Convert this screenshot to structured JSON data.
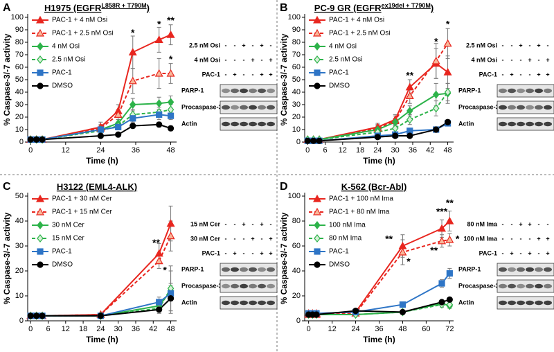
{
  "chart_data": [
    {
      "type": "line",
      "panel": "A",
      "title": "H1975 (EGFR",
      "title_superscript": "L858R + T790M",
      "title_suffix": ")",
      "xlabel": "Time (h)",
      "ylabel": "% Caspase-3/-7 activity",
      "x": [
        0,
        2,
        4,
        24,
        30,
        35,
        44,
        48
      ],
      "xlim": [
        -1,
        50
      ],
      "xticks": [
        0,
        12,
        24,
        36,
        48
      ],
      "ylim": [
        0,
        100
      ],
      "yticks": [
        0,
        10,
        20,
        30,
        40,
        50,
        60,
        70,
        80,
        90,
        100
      ],
      "series": [
        {
          "name": "PAC-1 + 4 nM Osi",
          "color": "#e8261f",
          "marker": "triangle",
          "marker_fill": "#e8261f",
          "dashed": false,
          "values": [
            2,
            2,
            2,
            12,
            25,
            72,
            82,
            86
          ],
          "errors": [
            1,
            1,
            1,
            4,
            5,
            13,
            10,
            8
          ]
        },
        {
          "name": "PAC-1 + 2.5 nM Osi",
          "color": "#e8261f",
          "marker": "triangle",
          "marker_fill": "#f8b79a",
          "dashed": true,
          "values": [
            2,
            2,
            2,
            11,
            22,
            49,
            55,
            55
          ],
          "errors": [
            1,
            1,
            1,
            3,
            4,
            10,
            12,
            8
          ]
        },
        {
          "name": "4 nM Osi",
          "color": "#2db34a",
          "marker": "diamond",
          "marker_fill": "#2db34a",
          "dashed": false,
          "values": [
            2,
            2,
            2,
            10,
            15,
            30,
            31,
            32
          ],
          "errors": [
            1,
            1,
            1,
            3,
            3,
            5,
            5,
            5
          ]
        },
        {
          "name": "2.5 nM Osi",
          "color": "#2db34a",
          "marker": "diamond",
          "marker_fill": "#d8f0d8",
          "dashed": true,
          "values": [
            2,
            2,
            2,
            9,
            13,
            22,
            24,
            26
          ],
          "errors": [
            1,
            1,
            1,
            3,
            3,
            4,
            4,
            4
          ]
        },
        {
          "name": "PAC-1",
          "color": "#2e75c6",
          "marker": "square",
          "marker_fill": "#2e75c6",
          "dashed": false,
          "values": [
            2,
            2,
            2,
            10,
            12,
            19,
            22,
            21
          ],
          "errors": [
            1,
            1,
            1,
            2,
            2,
            3,
            4,
            3
          ]
        },
        {
          "name": "DMSO",
          "color": "#000000",
          "marker": "circle",
          "marker_fill": "#000000",
          "dashed": false,
          "values": [
            2,
            2,
            2,
            5,
            6,
            13,
            14,
            11
          ],
          "errors": [
            1,
            1,
            1,
            1,
            1,
            2,
            2,
            2
          ]
        }
      ],
      "annotations": [
        {
          "text": "*",
          "x": 35,
          "y": 87
        },
        {
          "text": "*",
          "x": 44,
          "y": 94
        },
        {
          "text": "**",
          "x": 48,
          "y": 97
        },
        {
          "text": "*",
          "x": 48,
          "y": 66
        }
      ],
      "blot": {
        "treatments": [
          {
            "label": "2.5 nM Osi",
            "signs": [
              "-",
              "-",
              "+",
              "-",
              "+",
              "-"
            ]
          },
          {
            "label": "4 nM Osi",
            "signs": [
              "-",
              "-",
              "-",
              "+",
              "-",
              "+"
            ]
          },
          {
            "label": "PAC-1",
            "signs": [
              "-",
              "+",
              "-",
              "-",
              "+",
              "+"
            ]
          }
        ],
        "bands": [
          "PARP-1",
          "Procaspase-3",
          "Actin"
        ]
      }
    },
    {
      "type": "line",
      "panel": "B",
      "title": "PC-9 GR (EGFR",
      "title_superscript": "ex19del + T790M",
      "title_suffix": ")",
      "xlabel": "Time (h)",
      "ylabel": "% Caspase-3/-7 activity",
      "x": [
        0,
        2,
        4,
        24,
        30,
        35,
        44,
        48
      ],
      "xlim": [
        -1,
        50
      ],
      "xticks": [
        0,
        6,
        12,
        18,
        24,
        30,
        36,
        42,
        48
      ],
      "ylim": [
        0,
        100
      ],
      "yticks": [
        0,
        10,
        20,
        30,
        40,
        50,
        60,
        70,
        80,
        90,
        100
      ],
      "series": [
        {
          "name": "PAC-1 + 4 nM Osi",
          "color": "#e8261f",
          "marker": "triangle",
          "marker_fill": "#e8261f",
          "dashed": false,
          "values": [
            2,
            2,
            2,
            12,
            18,
            44,
            63,
            56
          ],
          "errors": [
            1,
            1,
            1,
            3,
            4,
            6,
            12,
            13
          ]
        },
        {
          "name": "PAC-1 + 2.5 nM Osi",
          "color": "#e8261f",
          "marker": "triangle",
          "marker_fill": "#f8b79a",
          "dashed": true,
          "values": [
            2,
            2,
            2,
            11,
            17,
            37,
            65,
            79
          ],
          "errors": [
            1,
            1,
            1,
            3,
            4,
            6,
            14,
            12
          ]
        },
        {
          "name": "4 nM Osi",
          "color": "#2db34a",
          "marker": "diamond",
          "marker_fill": "#2db34a",
          "dashed": false,
          "values": [
            2,
            2,
            2,
            10,
            16,
            25,
            38,
            39
          ],
          "errors": [
            1,
            1,
            1,
            3,
            3,
            4,
            9,
            8
          ]
        },
        {
          "name": "2.5 nM Osi",
          "color": "#2db34a",
          "marker": "diamond",
          "marker_fill": "#d8f0d8",
          "dashed": true,
          "values": [
            2,
            2,
            2,
            8,
            11,
            18,
            27,
            40
          ],
          "errors": [
            1,
            1,
            1,
            2,
            3,
            4,
            6,
            7
          ]
        },
        {
          "name": "PAC-1",
          "color": "#2e75c6",
          "marker": "square",
          "marker_fill": "#2e75c6",
          "dashed": false,
          "values": [
            1,
            1,
            1,
            5,
            6,
            9,
            10,
            15
          ],
          "errors": [
            1,
            1,
            1,
            1,
            1,
            1,
            1,
            2
          ]
        },
        {
          "name": "DMSO",
          "color": "#000000",
          "marker": "circle",
          "marker_fill": "#000000",
          "dashed": false,
          "values": [
            1,
            1,
            1,
            4,
            5,
            5,
            10,
            16
          ],
          "errors": [
            1,
            1,
            1,
            1,
            1,
            1,
            1,
            2
          ]
        }
      ],
      "annotations": [
        {
          "text": "**",
          "x": 35,
          "y": 53
        },
        {
          "text": "*",
          "x": 44,
          "y": 80
        },
        {
          "text": "*",
          "x": 48,
          "y": 94
        }
      ],
      "blot": {
        "treatments": [
          {
            "label": "2.5 nM Osi",
            "signs": [
              "-",
              "-",
              "+",
              "-",
              "+",
              "-"
            ]
          },
          {
            "label": "4 nM Osi",
            "signs": [
              "-",
              "-",
              "-",
              "+",
              "-",
              "+"
            ]
          },
          {
            "label": "PAC-1",
            "signs": [
              "-",
              "+",
              "-",
              "-",
              "+",
              "+"
            ]
          }
        ],
        "bands": [
          "PARP-1",
          "Procaspase-3",
          "Actin"
        ]
      }
    },
    {
      "type": "line",
      "panel": "C",
      "title": "H3122 (EML4-ALK)",
      "xlabel": "Time (h)",
      "ylabel": "% Caspase-3/-7 activity",
      "x": [
        0,
        2,
        4,
        24,
        44,
        48
      ],
      "xlim": [
        -1,
        50
      ],
      "xticks": [
        0,
        6,
        12,
        18,
        24,
        30,
        36,
        42,
        48
      ],
      "ylim": [
        0,
        50
      ],
      "yticks": [
        0,
        10,
        20,
        30,
        40,
        50
      ],
      "series": [
        {
          "name": "PAC-1 + 30 nM Cer",
          "color": "#e8261f",
          "marker": "triangle",
          "marker_fill": "#e8261f",
          "dashed": false,
          "values": [
            2,
            2,
            2,
            2.5,
            27,
            39
          ],
          "errors": [
            0.5,
            0.5,
            0.5,
            0.5,
            4,
            7
          ]
        },
        {
          "name": "PAC-1 + 15 nM Cer",
          "color": "#e8261f",
          "marker": "triangle",
          "marker_fill": "#f8b79a",
          "dashed": true,
          "values": [
            2,
            2,
            2,
            2.5,
            24,
            34
          ],
          "errors": [
            0.5,
            0.5,
            0.5,
            0.5,
            3,
            6
          ]
        },
        {
          "name": "30 nM Cer",
          "color": "#2db34a",
          "marker": "diamond",
          "marker_fill": "#2db34a",
          "dashed": false,
          "values": [
            2,
            2,
            2,
            2,
            6,
            12
          ],
          "errors": [
            0.5,
            0.5,
            0.5,
            0.5,
            2,
            8
          ]
        },
        {
          "name": "15 nM Cer",
          "color": "#2db34a",
          "marker": "diamond",
          "marker_fill": "#d8f0d8",
          "dashed": true,
          "values": [
            2,
            2,
            2,
            2,
            5,
            13
          ],
          "errors": [
            0.5,
            0.5,
            0.5,
            0.5,
            2,
            9
          ]
        },
        {
          "name": "PAC-1",
          "color": "#2e75c6",
          "marker": "square",
          "marker_fill": "#2e75c6",
          "dashed": false,
          "values": [
            2,
            2,
            2,
            2,
            7.5,
            11
          ],
          "errors": [
            0.5,
            0.5,
            0.5,
            0.5,
            2,
            3
          ]
        },
        {
          "name": "DMSO",
          "color": "#000000",
          "marker": "circle",
          "marker_fill": "#000000",
          "dashed": false,
          "values": [
            2,
            2,
            2,
            2,
            4.5,
            9
          ],
          "errors": [
            0.5,
            0.5,
            0.5,
            0.5,
            1,
            6
          ]
        }
      ],
      "annotations": [
        {
          "text": "**",
          "x": 43,
          "y": 31
        },
        {
          "text": "*",
          "x": 46,
          "y": 20
        }
      ],
      "blot": {
        "treatments": [
          {
            "label": "15 nM Cer",
            "signs": [
              "-",
              "-",
              "+",
              "-",
              "+",
              "-"
            ]
          },
          {
            "label": "30 nM Cer",
            "signs": [
              "-",
              "-",
              "-",
              "+",
              "-",
              "+"
            ]
          },
          {
            "label": "PAC-1",
            "signs": [
              "-",
              "+",
              "-",
              "-",
              "+",
              "+"
            ]
          }
        ],
        "bands": [
          "PARP-1",
          "Procaspase-3",
          "Actin"
        ]
      }
    },
    {
      "type": "line",
      "panel": "D",
      "title": "K-562 (Bcr-Abl)",
      "xlabel": "Time (h)",
      "ylabel": "% Caspase-3/-7 activity",
      "x": [
        0,
        2,
        4,
        24,
        48,
        68,
        72
      ],
      "xlim": [
        -2,
        74
      ],
      "xticks": [
        0,
        12,
        24,
        36,
        48,
        60,
        72
      ],
      "ylim": [
        0,
        100
      ],
      "yticks": [
        0,
        20,
        40,
        60,
        80,
        100
      ],
      "series": [
        {
          "name": "PAC-1 + 100 nM Ima",
          "color": "#e8261f",
          "marker": "triangle",
          "marker_fill": "#e8261f",
          "dashed": false,
          "values": [
            6,
            6,
            6,
            7,
            60,
            74,
            80
          ],
          "errors": [
            2,
            2,
            2,
            1,
            9,
            7,
            8
          ]
        },
        {
          "name": "PAC-1 + 80 nM Ima",
          "color": "#e8261f",
          "marker": "triangle",
          "marker_fill": "#f8b79a",
          "dashed": true,
          "values": [
            5,
            5,
            5,
            6,
            55,
            64,
            65
          ],
          "errors": [
            2,
            2,
            2,
            1,
            10,
            5,
            5
          ]
        },
        {
          "name": "100 nM Ima",
          "color": "#2db34a",
          "marker": "diamond",
          "marker_fill": "#2db34a",
          "dashed": false,
          "values": [
            5,
            5,
            5,
            5,
            7,
            14,
            12
          ],
          "errors": [
            1,
            1,
            1,
            1,
            1,
            2,
            2
          ]
        },
        {
          "name": "80 nM Ima",
          "color": "#2db34a",
          "marker": "diamond",
          "marker_fill": "#d8f0d8",
          "dashed": true,
          "values": [
            5,
            5,
            5,
            5,
            7,
            13,
            13
          ],
          "errors": [
            1,
            1,
            1,
            1,
            1,
            2,
            2
          ]
        },
        {
          "name": "PAC-1",
          "color": "#2e75c6",
          "marker": "square",
          "marker_fill": "#2e75c6",
          "dashed": false,
          "values": [
            6,
            6,
            6,
            7,
            13,
            30,
            38
          ],
          "errors": [
            1,
            1,
            1,
            1,
            1,
            3,
            4
          ]
        },
        {
          "name": "DMSO",
          "color": "#000000",
          "marker": "circle",
          "marker_fill": "#000000",
          "dashed": false,
          "values": [
            5,
            5,
            5,
            8,
            7,
            15,
            17
          ],
          "errors": [
            1,
            1,
            1,
            1,
            1,
            1,
            1
          ]
        }
      ],
      "annotations": [
        {
          "text": "**",
          "x": 41,
          "y": 65
        },
        {
          "text": "*",
          "x": 51,
          "y": 47
        },
        {
          "text": "***",
          "x": 68,
          "y": 87
        },
        {
          "text": "**",
          "x": 64,
          "y": 56
        },
        {
          "text": "**",
          "x": 72,
          "y": 94
        },
        {
          "text": "*",
          "x": 76,
          "y": 65
        }
      ],
      "blot": {
        "treatments": [
          {
            "label": "80 nM Ima",
            "signs": [
              "-",
              "-",
              "+",
              "+",
              "-",
              "-"
            ]
          },
          {
            "label": "100 nM Ima",
            "signs": [
              "-",
              "-",
              "-",
              "-",
              "+",
              "+"
            ]
          },
          {
            "label": "PAC-1",
            "signs": [
              "-",
              "+",
              "-",
              "+",
              "-",
              "+"
            ]
          }
        ],
        "bands": [
          "PARP-1",
          "Procaspase-3",
          "Actin"
        ]
      }
    }
  ]
}
